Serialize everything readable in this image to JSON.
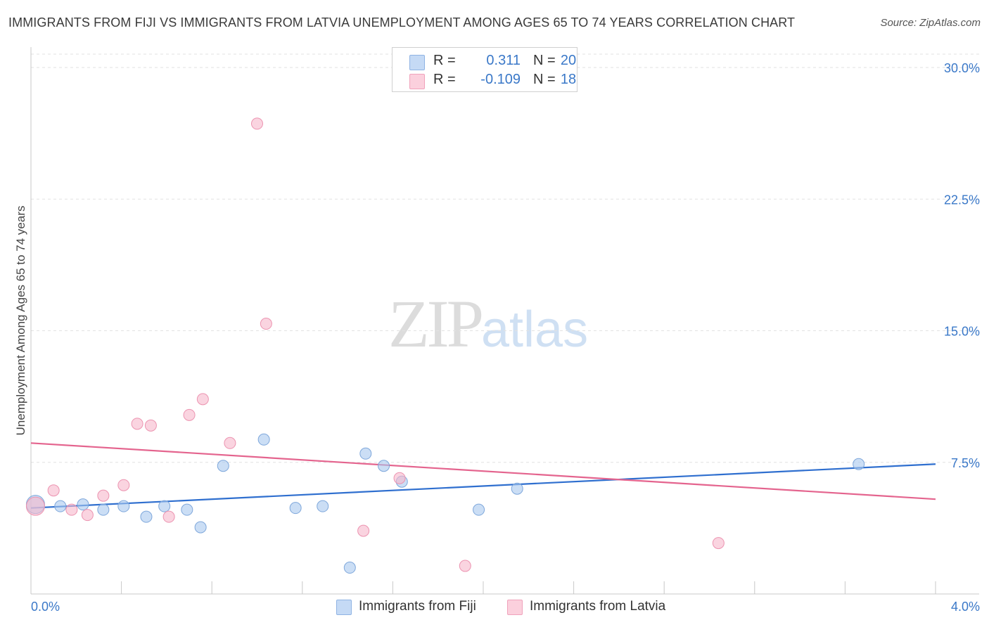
{
  "title": "IMMIGRANTS FROM FIJI VS IMMIGRANTS FROM LATVIA UNEMPLOYMENT AMONG AGES 65 TO 74 YEARS CORRELATION CHART",
  "source": "Source: ZipAtlas.com",
  "watermark": {
    "zip": "ZIP",
    "atlas": "atlas"
  },
  "legend": {
    "rows": [
      {
        "r_label": "R =",
        "r_value": "0.311",
        "n_label": "N =",
        "n_value": "20",
        "color": "#a9c8ef"
      },
      {
        "r_label": "R =",
        "r_value": "-0.109",
        "n_label": "N =",
        "n_value": "18",
        "color": "#f7b8cb"
      }
    ]
  },
  "bottom_legend": [
    "Immigrants from Fiji",
    "Immigrants from Latvia"
  ],
  "chart_data": {
    "type": "scatter",
    "title": "IMMIGRANTS FROM FIJI VS IMMIGRANTS FROM LATVIA UNEMPLOYMENT AMONG AGES 65 TO 74 YEARS CORRELATION CHART",
    "xlabel": "",
    "ylabel": "Unemployment Among Ages 65 to 74 years",
    "xlim": [
      0.0,
      4.0
    ],
    "ylim": [
      0.0,
      30.0
    ],
    "x_tick_labels": [
      "0.0%",
      "4.0%"
    ],
    "y_ticks": [
      7.5,
      15.0,
      22.5,
      30.0
    ],
    "y_tick_labels": [
      "7.5%",
      "15.0%",
      "22.5%",
      "30.0%"
    ],
    "series": [
      {
        "name": "Immigrants from Fiji",
        "color": "#a9c8ef",
        "stroke": "#7ea7db",
        "line_color": "#2f6fcf",
        "trend": {
          "x": [
            0.0,
            4.0
          ],
          "y": [
            4.9,
            7.4
          ]
        },
        "points": [
          {
            "x": 0.02,
            "y": 5.1,
            "big": true
          },
          {
            "x": 0.13,
            "y": 5.0
          },
          {
            "x": 0.23,
            "y": 5.1
          },
          {
            "x": 0.32,
            "y": 4.8
          },
          {
            "x": 0.41,
            "y": 5.0
          },
          {
            "x": 0.51,
            "y": 4.4
          },
          {
            "x": 0.59,
            "y": 5.0
          },
          {
            "x": 0.69,
            "y": 4.8
          },
          {
            "x": 0.75,
            "y": 3.8
          },
          {
            "x": 0.85,
            "y": 7.3
          },
          {
            "x": 1.03,
            "y": 8.8
          },
          {
            "x": 1.17,
            "y": 4.9
          },
          {
            "x": 1.29,
            "y": 5.0
          },
          {
            "x": 1.41,
            "y": 1.5
          },
          {
            "x": 1.48,
            "y": 8.0
          },
          {
            "x": 1.56,
            "y": 7.3
          },
          {
            "x": 1.64,
            "y": 6.4
          },
          {
            "x": 1.98,
            "y": 4.8
          },
          {
            "x": 2.15,
            "y": 6.0
          },
          {
            "x": 3.66,
            "y": 7.4
          }
        ]
      },
      {
        "name": "Immigrants from Latvia",
        "color": "#f7b8cb",
        "stroke": "#ec93b0",
        "line_color": "#e4648e",
        "trend": {
          "x": [
            0.0,
            4.0
          ],
          "y": [
            8.6,
            5.4
          ]
        },
        "points": [
          {
            "x": 0.02,
            "y": 5.0,
            "big": true
          },
          {
            "x": 0.1,
            "y": 5.9
          },
          {
            "x": 0.18,
            "y": 4.8
          },
          {
            "x": 0.25,
            "y": 4.5
          },
          {
            "x": 0.32,
            "y": 5.6
          },
          {
            "x": 0.41,
            "y": 6.2
          },
          {
            "x": 0.47,
            "y": 9.7
          },
          {
            "x": 0.53,
            "y": 9.6
          },
          {
            "x": 0.61,
            "y": 4.4
          },
          {
            "x": 0.7,
            "y": 10.2
          },
          {
            "x": 0.76,
            "y": 11.1
          },
          {
            "x": 0.88,
            "y": 8.6
          },
          {
            "x": 1.0,
            "y": 26.8
          },
          {
            "x": 1.04,
            "y": 15.4
          },
          {
            "x": 1.47,
            "y": 3.6
          },
          {
            "x": 1.63,
            "y": 6.6
          },
          {
            "x": 1.92,
            "y": 1.6
          },
          {
            "x": 3.04,
            "y": 2.9
          }
        ]
      }
    ]
  }
}
